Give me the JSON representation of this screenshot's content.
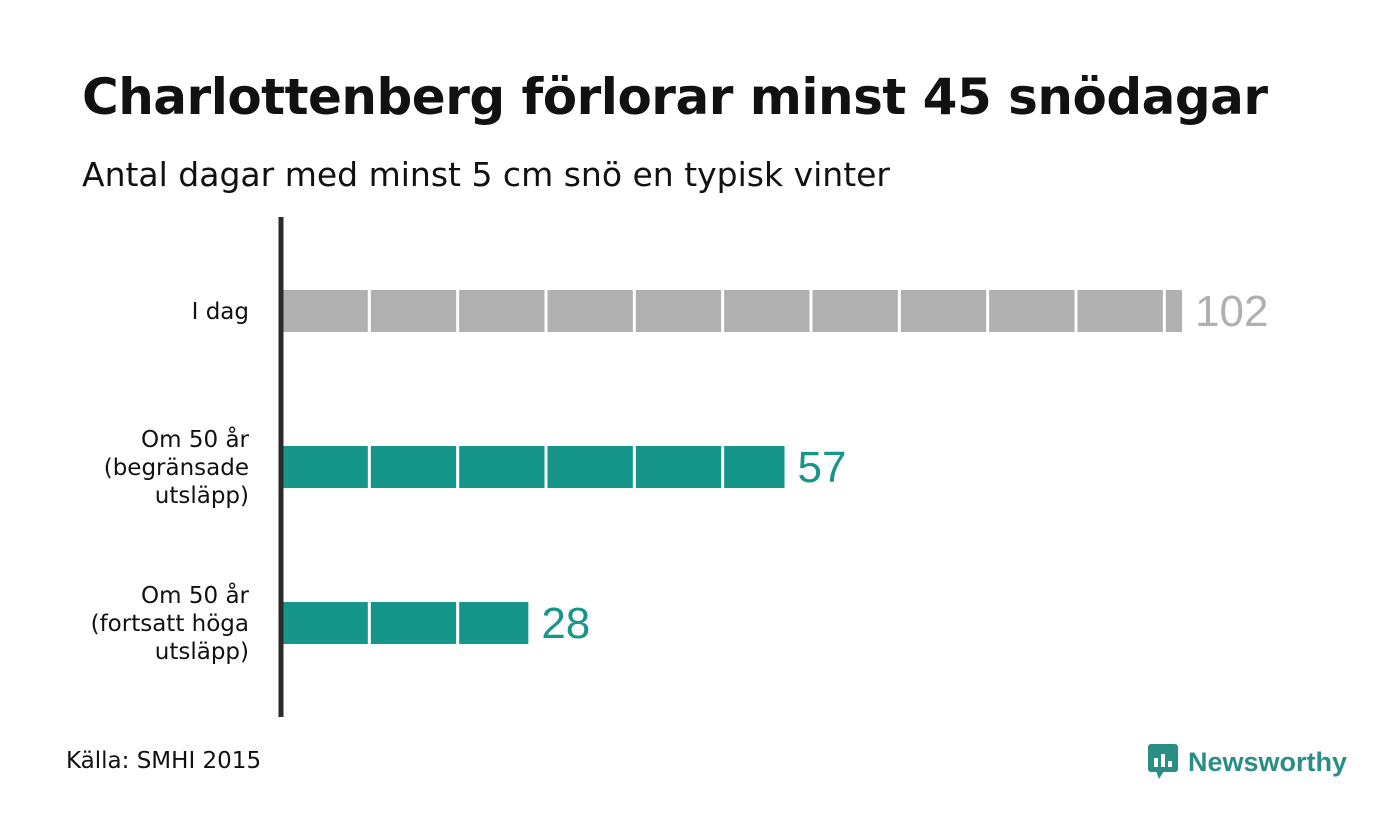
{
  "title": "Charlottenberg förlorar minst 45 snödagar",
  "subtitle": "Antal dagar med minst 5 cm snö en typisk vinter",
  "source": "Källa: SMHI 2015",
  "brand": "Newsworthy",
  "colors": {
    "today": "#b0b0b0",
    "future": "#16968a",
    "axis": "#2b2b2b",
    "brand": "#2a8e86"
  },
  "chart_data": {
    "type": "bar",
    "orientation": "horizontal",
    "categories": [
      "I dag",
      "Om 50 år (begränsade utsläpp)",
      "Om 50 år (fortsatt höga utsläpp)"
    ],
    "category_lines": [
      [
        "I dag"
      ],
      [
        "Om 50 år",
        "(begränsade",
        "utsläpp)"
      ],
      [
        "Om 50 år",
        "(fortsatt höga",
        "utsläpp)"
      ]
    ],
    "values": [
      102,
      57,
      28
    ],
    "value_labels": [
      "102",
      "57",
      "28"
    ],
    "bar_colors": [
      "#b0b0b0",
      "#16968a",
      "#16968a"
    ],
    "segment_size": 10,
    "xlim": [
      0,
      102
    ],
    "grid": false
  }
}
